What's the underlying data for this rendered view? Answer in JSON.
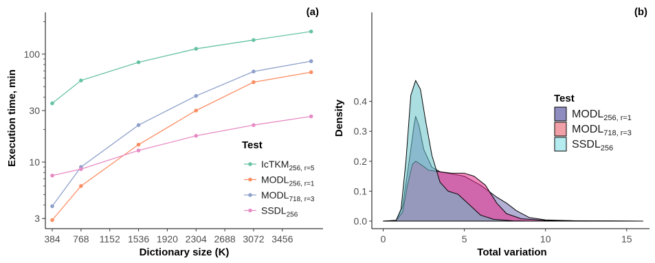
{
  "chart_data": [
    {
      "type": "line",
      "panel_label": "(a)",
      "xlabel": "Dictionary size (K)",
      "ylabel": "Execution time, min",
      "y_scale": "log",
      "x_ticks": [
        "384",
        "768",
        "1152",
        "1536",
        "1920",
        "2304",
        "2688",
        "3072",
        "3456"
      ],
      "y_ticks": [
        "3",
        "10",
        "30",
        "100"
      ],
      "x": [
        384,
        768,
        1536,
        2304,
        3072,
        3840
      ],
      "legend_title": "Test",
      "legend_position": "right",
      "series": [
        {
          "name": "IcTKM",
          "sub": "256, r=5",
          "color": "#66c2a5",
          "values": [
            35,
            57,
            84,
            112,
            135,
            162
          ]
        },
        {
          "name": "MODL",
          "sub": "256, r=1",
          "color": "#fc8d62",
          "values": [
            2.9,
            6.0,
            14.5,
            30,
            55,
            68
          ]
        },
        {
          "name": "MODL",
          "sub": "718, r=3",
          "color": "#8da0cb",
          "values": [
            3.9,
            9.0,
            22,
            41,
            69,
            86
          ]
        },
        {
          "name": "SSDL",
          "sub": "256",
          "color": "#e78ac3",
          "values": [
            7.5,
            8.6,
            12.8,
            17.5,
            22,
            26.5
          ]
        }
      ]
    },
    {
      "type": "area",
      "panel_label": "(b)",
      "xlabel": "Total variation",
      "ylabel": "Density",
      "x_ticks": [
        "0",
        "5",
        "10",
        "15"
      ],
      "y_ticks": [
        "0.0",
        "0.1",
        "0.2",
        "0.3",
        "0.4"
      ],
      "xlim": [
        -0.8,
        16.2
      ],
      "ylim": [
        0,
        0.48
      ],
      "legend_title": "Test",
      "legend_position": "right",
      "series": [
        {
          "name": "MODL",
          "sub": "256, r=1",
          "color": "#7570b3",
          "points": [
            [
              0,
              0
            ],
            [
              0.8,
              0.002
            ],
            [
              1.2,
              0.05
            ],
            [
              1.6,
              0.2
            ],
            [
              1.9,
              0.32
            ],
            [
              2.0,
              0.35
            ],
            [
              2.2,
              0.32
            ],
            [
              2.5,
              0.24
            ],
            [
              3.0,
              0.18
            ],
            [
              3.5,
              0.165
            ],
            [
              4.0,
              0.16
            ],
            [
              5.0,
              0.15
            ],
            [
              6.0,
              0.12
            ],
            [
              7.0,
              0.08
            ],
            [
              7.6,
              0.06
            ],
            [
              8.2,
              0.035
            ],
            [
              9.0,
              0.012
            ],
            [
              10.0,
              0.004
            ],
            [
              12.0,
              0.001
            ],
            [
              16.0,
              0
            ]
          ]
        },
        {
          "name": "MODL",
          "sub": "718, r=3",
          "color": "#e7298a",
          "points": [
            [
              0,
              0
            ],
            [
              0.8,
              0.002
            ],
            [
              1.2,
              0.03
            ],
            [
              1.5,
              0.12
            ],
            [
              1.8,
              0.19
            ],
            [
              2.0,
              0.2
            ],
            [
              2.3,
              0.19
            ],
            [
              2.8,
              0.17
            ],
            [
              3.5,
              0.165
            ],
            [
              4.2,
              0.16
            ],
            [
              5.0,
              0.16
            ],
            [
              5.6,
              0.15
            ],
            [
              6.3,
              0.12
            ],
            [
              7.0,
              0.06
            ],
            [
              7.6,
              0.025
            ],
            [
              8.5,
              0.008
            ],
            [
              10.0,
              0.002
            ],
            [
              12.8,
              0.001
            ],
            [
              16.0,
              0
            ]
          ]
        },
        {
          "name": "SSDL",
          "sub": "256",
          "color": "#66c2c8",
          "points": [
            [
              0,
              0
            ],
            [
              0.8,
              0.003
            ],
            [
              1.1,
              0.04
            ],
            [
              1.4,
              0.2
            ],
            [
              1.7,
              0.42
            ],
            [
              2.0,
              0.47
            ],
            [
              2.3,
              0.44
            ],
            [
              2.6,
              0.34
            ],
            [
              3.0,
              0.22
            ],
            [
              3.5,
              0.13
            ],
            [
              4.0,
              0.1
            ],
            [
              4.6,
              0.09
            ],
            [
              5.2,
              0.06
            ],
            [
              6.0,
              0.02
            ],
            [
              6.8,
              0.006
            ],
            [
              8.0,
              0.001
            ],
            [
              9.0,
              0
            ]
          ]
        }
      ],
      "legend_colors": [
        "#8f8dbf",
        "#f2a0a8",
        "#b4ecf0"
      ]
    }
  ]
}
